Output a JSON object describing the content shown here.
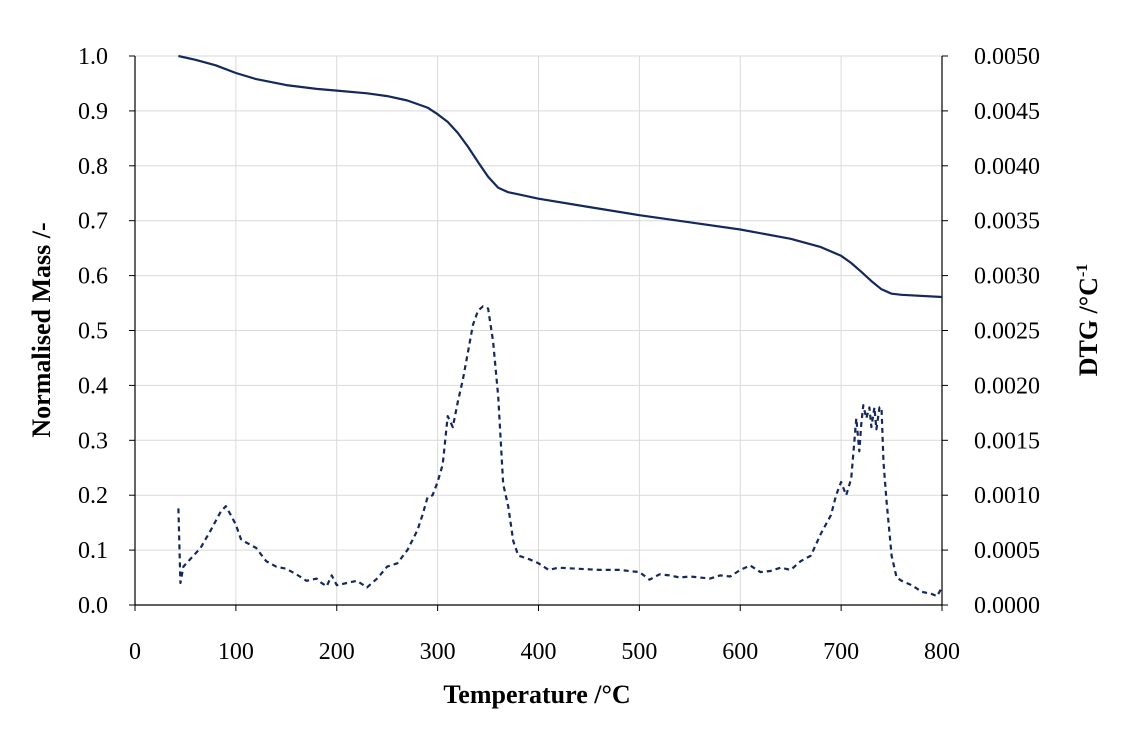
{
  "chart_data": {
    "type": "line",
    "title": "",
    "xlabel": "Temperature /°C",
    "ylabel": "Normalised Mass /-",
    "y2label_main": "DTG  /°C",
    "y2label_sup": "-1",
    "xlim": [
      0,
      800
    ],
    "ylim": [
      0.0,
      1.0
    ],
    "y2lim": [
      0.0,
      0.005
    ],
    "xticks": [
      "0",
      "100",
      "200",
      "300",
      "400",
      "500",
      "600",
      "700",
      "800"
    ],
    "yticks": [
      "0.0",
      "0.1",
      "0.2",
      "0.3",
      "0.4",
      "0.5",
      "0.6",
      "0.7",
      "0.8",
      "0.9",
      "1.0"
    ],
    "y2ticks": [
      "0.0000",
      "0.0005",
      "0.0010",
      "0.0015",
      "0.0020",
      "0.0025",
      "0.0030",
      "0.0035",
      "0.0040",
      "0.0045",
      "0.0050"
    ],
    "grid": true,
    "legend": "none",
    "colors": {
      "series": "#14285a",
      "grid": "#d9d9d9",
      "axis": "#000000"
    },
    "series": [
      {
        "axis": "left",
        "style": "solid",
        "x": [
          43,
          60,
          80,
          100,
          120,
          150,
          180,
          200,
          230,
          250,
          270,
          290,
          300,
          310,
          320,
          330,
          340,
          350,
          360,
          370,
          380,
          400,
          450,
          500,
          550,
          600,
          650,
          680,
          700,
          710,
          720,
          730,
          740,
          750,
          760,
          800
        ],
        "y": [
          1.0,
          0.993,
          0.983,
          0.969,
          0.958,
          0.947,
          0.94,
          0.937,
          0.932,
          0.927,
          0.919,
          0.906,
          0.894,
          0.88,
          0.86,
          0.835,
          0.807,
          0.78,
          0.76,
          0.752,
          0.748,
          0.74,
          0.725,
          0.71,
          0.697,
          0.684,
          0.667,
          0.652,
          0.636,
          0.623,
          0.607,
          0.59,
          0.575,
          0.567,
          0.565,
          0.561
        ]
      },
      {
        "axis": "right",
        "style": "dashed",
        "x": [
          43,
          45,
          48,
          55,
          65,
          75,
          85,
          90,
          95,
          100,
          105,
          110,
          120,
          130,
          140,
          150,
          160,
          170,
          180,
          185,
          190,
          195,
          200,
          210,
          220,
          230,
          240,
          250,
          260,
          270,
          280,
          285,
          290,
          295,
          300,
          305,
          310,
          315,
          320,
          325,
          330,
          335,
          340,
          345,
          350,
          355,
          360,
          365,
          370,
          375,
          380,
          390,
          400,
          410,
          420,
          440,
          460,
          480,
          500,
          510,
          520,
          530,
          540,
          550,
          560,
          570,
          580,
          590,
          600,
          610,
          620,
          630,
          640,
          650,
          660,
          670,
          680,
          690,
          695,
          700,
          705,
          710,
          715,
          718,
          720,
          722,
          725,
          728,
          730,
          733,
          735,
          738,
          740,
          742,
          745,
          750,
          755,
          760,
          770,
          780,
          790,
          795,
          800
        ],
        "y": [
          0.00088,
          0.0002,
          0.00035,
          0.00042,
          0.00052,
          0.00068,
          0.00085,
          0.0009,
          0.00082,
          0.00073,
          0.0006,
          0.00057,
          0.00052,
          0.0004,
          0.00035,
          0.00033,
          0.00028,
          0.00022,
          0.00024,
          0.0002,
          0.00017,
          0.00027,
          0.00018,
          0.0002,
          0.00022,
          0.00016,
          0.00024,
          0.00035,
          0.00038,
          0.0005,
          0.00068,
          0.00082,
          0.00098,
          0.001,
          0.00112,
          0.00128,
          0.00172,
          0.00162,
          0.00185,
          0.00205,
          0.0023,
          0.00255,
          0.00268,
          0.00272,
          0.0027,
          0.0024,
          0.0019,
          0.0011,
          0.0009,
          0.00058,
          0.00045,
          0.00042,
          0.00038,
          0.00032,
          0.00034,
          0.00033,
          0.00032,
          0.00032,
          0.0003,
          0.00023,
          0.00028,
          0.00027,
          0.00025,
          0.00026,
          0.00025,
          0.00024,
          0.00027,
          0.00026,
          0.00032,
          0.00036,
          0.0003,
          0.00031,
          0.00034,
          0.00032,
          0.0004,
          0.00045,
          0.00065,
          0.00082,
          0.001,
          0.00112,
          0.001,
          0.00115,
          0.0017,
          0.0014,
          0.00165,
          0.00182,
          0.0017,
          0.0018,
          0.00162,
          0.0018,
          0.0016,
          0.0018,
          0.0018,
          0.0013,
          0.00095,
          0.00045,
          0.00025,
          0.00022,
          0.00018,
          0.00012,
          0.0001,
          8e-05,
          0.00016
        ]
      }
    ]
  }
}
